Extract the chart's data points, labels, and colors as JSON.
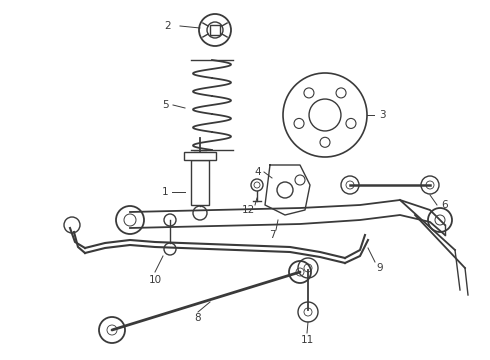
{
  "background_color": "#ffffff",
  "line_color": "#3a3a3a",
  "label_color": "#222222",
  "lw": 1.0,
  "figsize": [
    4.9,
    3.6
  ],
  "dpi": 100
}
